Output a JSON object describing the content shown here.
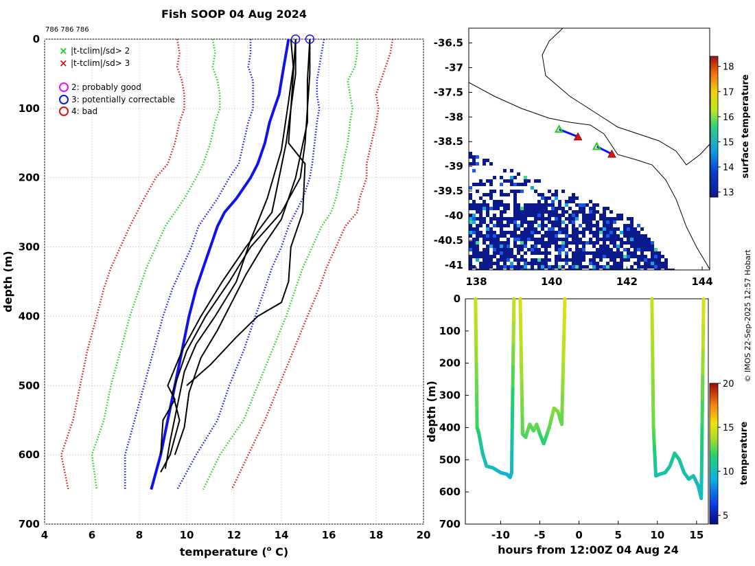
{
  "title": "Fish SOOP 04 Aug 2024",
  "id_text": "786 786 786",
  "credit": "© IMOS 22-Sep-2025 12:57 Hobart",
  "colors": {
    "green": "#22cc22",
    "red": "#dd1111",
    "blue": "#1111ee",
    "magenta": "#ee11ee",
    "black": "#000000",
    "land": "#ffffff",
    "ocean_low": "#0a1a8c"
  },
  "legend": {
    "sd2": "|t-tclim|/sd> 2",
    "sd3": "|t-tclim|/sd> 3",
    "flag2": "2: probably good",
    "flag3": "3: potentially correctable",
    "flag4": "4: bad"
  },
  "chart_data": [
    {
      "type": "line",
      "name": "profile",
      "xlabel": "temperature (",
      "xlabel_unit": "o",
      "xlabel_end": " C)",
      "ylabel": "depth (m)",
      "xlim": [
        4,
        20
      ],
      "ylim": [
        700,
        0
      ],
      "xticks": [
        4,
        6,
        8,
        10,
        12,
        14,
        16,
        18,
        20
      ],
      "yticks": [
        0,
        100,
        200,
        300,
        400,
        500,
        600,
        700
      ],
      "grid": true,
      "climatology": {
        "depths": [
          0,
          20,
          40,
          60,
          80,
          100,
          120,
          150,
          180,
          200,
          230,
          250,
          270,
          300,
          330,
          360,
          400,
          450,
          500,
          550,
          600,
          650
        ],
        "mean": [
          14.3,
          14.2,
          14.1,
          14.0,
          13.9,
          13.7,
          13.5,
          13.3,
          13.0,
          12.7,
          12.1,
          11.6,
          11.3,
          11.0,
          10.7,
          10.4,
          10.1,
          9.8,
          9.5,
          9.2,
          8.9,
          8.5
        ],
        "sd1_low": [
          15.8,
          15.8,
          15.7,
          15.6,
          15.5,
          15.6,
          15.5,
          15.4,
          15.3,
          15.3,
          15.1,
          14.9,
          14.5,
          14.2,
          14.1,
          13.8,
          13.3,
          12.7,
          12.0,
          11.5,
          11.0,
          10.7
        ],
        "sd1_high": [
          15.5,
          15.5,
          15.5,
          15.4,
          15.5,
          15.5,
          15.5,
          15.4,
          15.4,
          15.3,
          15.1,
          14.9,
          14.5,
          14.2,
          14.1,
          13.8,
          13.3,
          12.7,
          12.0,
          11.5,
          11.0,
          10.7
        ],
        "lines": [
          {
            "name": "red-low",
            "color": "red",
            "values": [
              9.6,
              9.7,
              9.6,
              9.8,
              9.9,
              9.9,
              9.7,
              9.5,
              9.2,
              8.7,
              8.2,
              7.9,
              7.6,
              7.2,
              6.8,
              6.5,
              6.2,
              5.8,
              5.5,
              5.2,
              4.7,
              5.0
            ]
          },
          {
            "name": "green-low",
            "color": "green",
            "values": [
              11.1,
              11.2,
              11.1,
              11.3,
              11.4,
              11.4,
              11.2,
              11.0,
              10.7,
              10.4,
              9.9,
              9.5,
              9.1,
              8.7,
              8.3,
              8.0,
              7.6,
              7.2,
              6.8,
              6.5,
              6.0,
              6.2
            ]
          },
          {
            "name": "blue-low",
            "color": "blue",
            "values": [
              12.7,
              12.7,
              12.6,
              12.8,
              12.8,
              12.8,
              12.6,
              12.4,
              12.2,
              11.8,
              11.3,
              10.9,
              10.5,
              10.2,
              9.8,
              9.4,
              9.0,
              8.6,
              8.2,
              7.8,
              7.4,
              7.4
            ]
          },
          {
            "name": "blue-high",
            "color": "blue",
            "values": [
              15.8,
              15.7,
              15.6,
              15.5,
              15.5,
              15.6,
              15.5,
              15.4,
              15.3,
              15.2,
              14.9,
              14.6,
              14.3,
              14.0,
              13.6,
              13.3,
              12.9,
              12.4,
              11.8,
              11.3,
              10.4,
              9.6
            ]
          },
          {
            "name": "green-high",
            "color": "green",
            "values": [
              17.2,
              17.2,
              17.1,
              16.8,
              16.9,
              17.0,
              16.9,
              16.8,
              16.6,
              16.5,
              16.3,
              16.1,
              15.7,
              15.3,
              14.9,
              14.6,
              14.2,
              13.6,
              13.0,
              12.4,
              11.4,
              10.7
            ]
          },
          {
            "name": "red-high",
            "color": "red",
            "values": [
              18.7,
              18.6,
              18.4,
              18.2,
              18.0,
              18.1,
              18.0,
              17.8,
              17.6,
              17.6,
              17.3,
              17.2,
              16.7,
              16.3,
              15.9,
              15.6,
              15.1,
              14.5,
              13.9,
              13.3,
              12.6,
              11.9
            ]
          }
        ]
      },
      "observed_profiles": [
        {
          "depths": [
            0,
            50,
            100,
            150,
            200,
            250,
            300,
            350,
            400,
            450,
            500,
            520,
            550,
            600
          ],
          "values": [
            14.6,
            14.5,
            14.4,
            14.2,
            13.9,
            13.6,
            12.5,
            11.5,
            10.6,
            9.8,
            9.2,
            9.5,
            9.0,
            8.9
          ]
        },
        {
          "depths": [
            0,
            50,
            100,
            150,
            200,
            250,
            300,
            350,
            400,
            450,
            510,
            550,
            600,
            625
          ],
          "values": [
            15.2,
            15.2,
            15.1,
            15.0,
            14.8,
            14.0,
            12.7,
            11.8,
            10.8,
            10.0,
            9.4,
            9.7,
            9.3,
            8.9
          ]
        },
        {
          "depths": [
            0,
            50,
            100,
            150,
            180,
            250,
            300,
            350,
            380,
            400,
            430,
            470,
            500
          ],
          "values": [
            14.6,
            14.6,
            14.4,
            14.3,
            15.0,
            14.9,
            14.4,
            14.3,
            14.0,
            13.0,
            12.1,
            11.0,
            10.0
          ]
        },
        {
          "depths": [
            0,
            60,
            120,
            200,
            260,
            300,
            340,
            380,
            420,
            460,
            510,
            560,
            600
          ],
          "values": [
            15.2,
            15.1,
            15.1,
            14.6,
            14.0,
            13.2,
            12.5,
            11.9,
            11.3,
            10.6,
            10.1,
            9.9,
            9.5
          ]
        },
        {
          "depths": [
            0,
            40,
            90,
            160,
            230,
            290,
            350,
            400,
            440,
            480,
            530,
            580,
            620
          ],
          "values": [
            14.4,
            14.5,
            14.3,
            14.0,
            13.4,
            12.7,
            12.1,
            11.2,
            10.4,
            9.9,
            9.6,
            9.3,
            9.1
          ]
        }
      ],
      "flag_markers": {
        "depth": 0,
        "values": [
          14.6,
          15.2
        ],
        "flag": "flag3"
      }
    },
    {
      "type": "heatmap",
      "name": "map",
      "xlim": [
        137.8,
        144.2
      ],
      "ylim": [
        -41.1,
        -36.2
      ],
      "xticks": [
        138,
        140,
        142,
        144
      ],
      "yticks": [
        -36.5,
        -37,
        -37.5,
        -38,
        -38.5,
        -39,
        -39.5,
        -40,
        -40.5,
        -41
      ],
      "colorbar_label": "surface temperature",
      "colorbar_range": [
        12.8,
        18.4
      ],
      "colorbar_ticks": [
        13,
        14,
        15,
        16,
        17,
        18
      ],
      "tracks": [
        {
          "lon": [
            140.2,
            140.7
          ],
          "lat": [
            -38.25,
            -38.4
          ]
        },
        {
          "lon": [
            141.2,
            141.6
          ],
          "lat": [
            -38.6,
            -38.75
          ]
        }
      ]
    },
    {
      "type": "line",
      "name": "timeseries",
      "xlabel": "hours from 12:00Z 04 Aug 24",
      "ylabel": "depth (m)",
      "xlim": [
        -14.5,
        16.5
      ],
      "ylim": [
        700,
        0
      ],
      "xticks": [
        -10,
        -5,
        0,
        5,
        10,
        15
      ],
      "yticks": [
        0,
        100,
        200,
        300,
        400,
        500,
        600,
        700
      ],
      "colorbar_label": "temperature",
      "colorbar_range": [
        4,
        20
      ],
      "colorbar_ticks": [
        5,
        10,
        15,
        20
      ],
      "casts": [
        {
          "times": [
            -13.2,
            -13.0,
            -12.8,
            -12.3,
            -11.8,
            -11.0,
            -10.0,
            -9.2,
            -8.8,
            -8.6,
            -8.3
          ],
          "depths": [
            0,
            400,
            415,
            480,
            520,
            525,
            540,
            545,
            555,
            540,
            0
          ],
          "temps": [
            14.6,
            12.0,
            11.5,
            10.5,
            10.0,
            9.8,
            9.6,
            9.5,
            9.4,
            9.6,
            14.6
          ]
        },
        {
          "times": [
            -7.5,
            -7.2,
            -6.8,
            -6.3,
            -5.8,
            -5.4,
            -5.0,
            -4.5,
            -3.8,
            -3.2,
            -2.7,
            -2.2,
            -1.8
          ],
          "depths": [
            0,
            420,
            430,
            390,
            410,
            390,
            420,
            450,
            400,
            340,
            350,
            390,
            0
          ],
          "temps": [
            15.0,
            12.5,
            12.3,
            12.8,
            12.4,
            12.9,
            12.1,
            11.6,
            12.6,
            13.3,
            13.1,
            12.6,
            15.2
          ]
        },
        {
          "times": [
            9.3,
            9.5,
            9.8,
            10.3,
            11.0,
            11.6,
            12.2,
            12.8,
            13.4,
            14.0,
            14.6,
            15.2,
            15.6
          ],
          "depths": [
            0,
            400,
            550,
            545,
            540,
            520,
            480,
            500,
            540,
            560,
            550,
            580,
            620
          ],
          "temps": [
            14.4,
            12.8,
            10.4,
            10.5,
            10.4,
            10.7,
            11.1,
            10.8,
            10.4,
            10.2,
            10.3,
            10.0,
            9.8
          ]
        },
        {
          "times": [
            15.6,
            15.9
          ],
          "depths": [
            620,
            0
          ],
          "temps": [
            9.8,
            15.2
          ]
        }
      ]
    }
  ]
}
